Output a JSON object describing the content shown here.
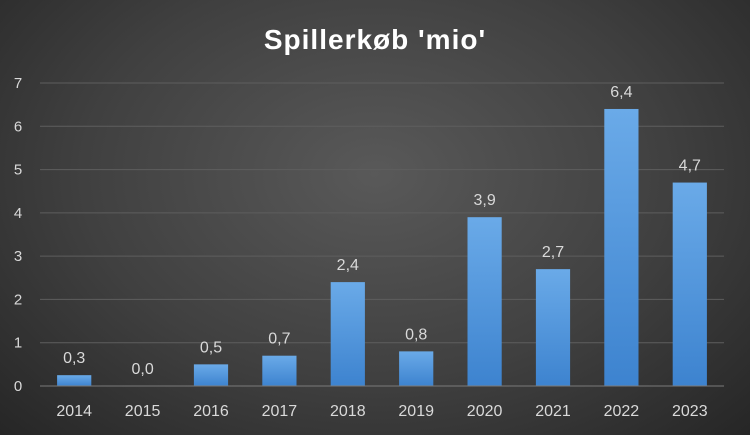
{
  "chart_data": {
    "type": "bar",
    "title": "Spillerkøb 'mio'",
    "xlabel": "",
    "ylabel": "",
    "categories": [
      "2014",
      "2015",
      "2016",
      "2017",
      "2018",
      "2019",
      "2020",
      "2021",
      "2022",
      "2023"
    ],
    "values": [
      0.25,
      0.0,
      0.5,
      0.7,
      2.4,
      0.8,
      3.9,
      2.7,
      6.4,
      4.7
    ],
    "data_labels": [
      "0,3",
      "0,0",
      "0,5",
      "0,7",
      "2,4",
      "0,8",
      "3,9",
      "2,7",
      "6,4",
      "4,7"
    ],
    "y_ticks": [
      "0",
      "1",
      "2",
      "3",
      "4",
      "5",
      "6",
      "7"
    ],
    "ylim": [
      0,
      7
    ],
    "grid": true,
    "legend": "none",
    "colors": {
      "bar_top": "#6aaae8",
      "bar_bottom": "#3d83cf",
      "background": "#404040"
    }
  }
}
